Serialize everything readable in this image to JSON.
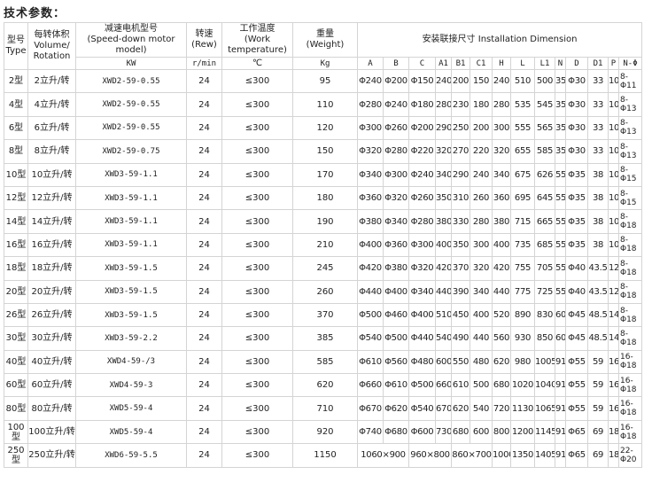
{
  "title": "技术参数：",
  "header": {
    "type": "型号\nType",
    "volume": "每转体积\nVolume/\nRotation",
    "motor": "减速电机型号\n(Speed-down motor\nmodel)",
    "speed": "转速\n(Rew)",
    "temp": "工作温度\n(Work\ntemperature)",
    "weight": "重量\n(Weight)",
    "install": "安装联接尺寸 Installation Dimension",
    "units": {
      "motor": "KW",
      "speed": "r/min",
      "temp": "℃",
      "weight": "Kg"
    },
    "dims": [
      "A",
      "B",
      "C",
      "A1",
      "B1",
      "C1",
      "H",
      "L",
      "L1",
      "N",
      "D",
      "D1",
      "P",
      "N-Φ"
    ]
  },
  "rows": [
    {
      "type": "2型",
      "volume": "2立升/转",
      "motor": "XWD2-59-0.55",
      "speed": "24",
      "temp": "≤300",
      "weight": "95",
      "dims": [
        "Φ240",
        "Φ200",
        "Φ150",
        "240",
        "200",
        "150",
        "240",
        "510",
        "500",
        "35",
        "Φ30",
        "33",
        "10",
        "8-Φ11"
      ]
    },
    {
      "type": "4型",
      "volume": "4立升/转",
      "motor": "XWD2-59-0.55",
      "speed": "24",
      "temp": "≤300",
      "weight": "110",
      "dims": [
        "Φ280",
        "Φ240",
        "Φ180",
        "280",
        "230",
        "180",
        "280",
        "535",
        "545",
        "35",
        "Φ30",
        "33",
        "10",
        "8-Φ13"
      ]
    },
    {
      "type": "6型",
      "volume": "6立升/转",
      "motor": "XWD2-59-0.55",
      "speed": "24",
      "temp": "≤300",
      "weight": "120",
      "dims": [
        "Φ300",
        "Φ260",
        "Φ200",
        "290",
        "250",
        "200",
        "300",
        "555",
        "565",
        "35",
        "Φ30",
        "33",
        "10",
        "8-Φ13"
      ]
    },
    {
      "type": "8型",
      "volume": "8立升/转",
      "motor": "XWD2-59-0.75",
      "speed": "24",
      "temp": "≤300",
      "weight": "150",
      "dims": [
        "Φ320",
        "Φ280",
        "Φ220",
        "320",
        "270",
        "220",
        "320",
        "655",
        "585",
        "35",
        "Φ30",
        "33",
        "10",
        "8-Φ13"
      ]
    },
    {
      "type": "10型",
      "volume": "10立升/转",
      "motor": "XWD3-59-1.1",
      "speed": "24",
      "temp": "≤300",
      "weight": "170",
      "dims": [
        "Φ340",
        "Φ300",
        "Φ240",
        "340",
        "290",
        "240",
        "340",
        "675",
        "626",
        "55",
        "Φ35",
        "38",
        "10",
        "8-Φ15"
      ]
    },
    {
      "type": "12型",
      "volume": "12立升/转",
      "motor": "XWD3-59-1.1",
      "speed": "24",
      "temp": "≤300",
      "weight": "180",
      "dims": [
        "Φ360",
        "Φ320",
        "Φ260",
        "350",
        "310",
        "260",
        "360",
        "695",
        "645",
        "55",
        "Φ35",
        "38",
        "10",
        "8-Φ15"
      ]
    },
    {
      "type": "14型",
      "volume": "14立升/转",
      "motor": "XWD3-59-1.1",
      "speed": "24",
      "temp": "≤300",
      "weight": "190",
      "dims": [
        "Φ380",
        "Φ340",
        "Φ280",
        "380",
        "330",
        "280",
        "380",
        "715",
        "665",
        "55",
        "Φ35",
        "38",
        "10",
        "8-Φ18"
      ]
    },
    {
      "type": "16型",
      "volume": "16立升/转",
      "motor": "XWD3-59-1.1",
      "speed": "24",
      "temp": "≤300",
      "weight": "210",
      "dims": [
        "Φ400",
        "Φ360",
        "Φ300",
        "400",
        "350",
        "300",
        "400",
        "735",
        "685",
        "55",
        "Φ35",
        "38",
        "10",
        "8-Φ18"
      ]
    },
    {
      "type": "18型",
      "volume": "18立升/转",
      "motor": "XWD3-59-1.5",
      "speed": "24",
      "temp": "≤300",
      "weight": "245",
      "dims": [
        "Φ420",
        "Φ380",
        "Φ320",
        "420",
        "370",
        "320",
        "420",
        "755",
        "705",
        "55",
        "Φ40",
        "43.5",
        "12",
        "8-Φ18"
      ]
    },
    {
      "type": "20型",
      "volume": "20立升/转",
      "motor": "XWD3-59-1.5",
      "speed": "24",
      "temp": "≤300",
      "weight": "260",
      "dims": [
        "Φ440",
        "Φ400",
        "Φ340",
        "440",
        "390",
        "340",
        "440",
        "775",
        "725",
        "55",
        "Φ40",
        "43.5",
        "12",
        "8-Φ18"
      ]
    },
    {
      "type": "26型",
      "volume": "26立升/转",
      "motor": "XWD3-59-1.5",
      "speed": "24",
      "temp": "≤300",
      "weight": "370",
      "dims": [
        "Φ500",
        "Φ460",
        "Φ400",
        "510",
        "450",
        "400",
        "520",
        "890",
        "830",
        "60",
        "Φ45",
        "48.5",
        "14",
        "8-Φ18"
      ]
    },
    {
      "type": "30型",
      "volume": "30立升/转",
      "motor": "XWD3-59-2.2",
      "speed": "24",
      "temp": "≤300",
      "weight": "385",
      "dims": [
        "Φ540",
        "Φ500",
        "Φ440",
        "540",
        "490",
        "440",
        "560",
        "930",
        "850",
        "60",
        "Φ45",
        "48.5",
        "14",
        "8-Φ18"
      ]
    },
    {
      "type": "40型",
      "volume": "40立升/转",
      "motor": "XWD4-59-/3",
      "speed": "24",
      "temp": "≤300",
      "weight": "585",
      "dims": [
        "Φ610",
        "Φ560",
        "Φ480",
        "600",
        "550",
        "480",
        "620",
        "980",
        "1005",
        "91",
        "Φ55",
        "59",
        "16",
        "16-Φ18"
      ]
    },
    {
      "type": "60型",
      "volume": "60立升/转",
      "motor": "XWD4-59-3",
      "speed": "24",
      "temp": "≤300",
      "weight": "620",
      "dims": [
        "Φ660",
        "Φ610",
        "Φ500",
        "660",
        "610",
        "500",
        "680",
        "1020",
        "1040",
        "91",
        "Φ55",
        "59",
        "16",
        "16-Φ18"
      ]
    },
    {
      "type": "80型",
      "volume": "80立升/转",
      "motor": "XWD5-59-4",
      "speed": "24",
      "temp": "≤300",
      "weight": "710",
      "dims": [
        "Φ670",
        "Φ620",
        "Φ540",
        "670",
        "620",
        "540",
        "720",
        "1130",
        "1065",
        "91",
        "Φ55",
        "59",
        "16",
        "16-Φ18"
      ]
    },
    {
      "type": "100型",
      "volume": "100立升/转",
      "motor": "XWD5-59-4",
      "speed": "24",
      "temp": "≤300",
      "weight": "920",
      "dims": [
        "Φ740",
        "Φ680",
        "Φ600",
        "730",
        "680",
        "600",
        "800",
        "1200",
        "1145",
        "91",
        "Φ65",
        "69",
        "18",
        "16-Φ18"
      ]
    },
    {
      "type": "250型",
      "volume": "250立升/转",
      "motor": "XWD6-59-5.5",
      "speed": "24",
      "temp": "≤300",
      "weight": "1150",
      "merged": [
        "1060×900",
        "960×800",
        "860×700"
      ],
      "dims": [
        "1000",
        "1350",
        "1405",
        "91",
        "Φ65",
        "69",
        "18",
        "22-Φ20"
      ]
    }
  ]
}
